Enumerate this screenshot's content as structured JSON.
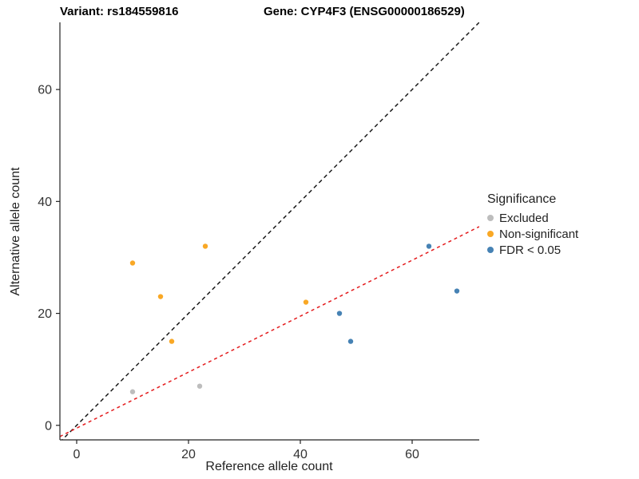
{
  "titles": {
    "variant": "Variant: rs184559816",
    "gene": "Gene: CYP4F3 (ENSG00000186529)"
  },
  "chart_data": {
    "type": "scatter",
    "xlabel": "Reference allele count",
    "ylabel": "Alternative allele count",
    "xlim": [
      -3,
      72
    ],
    "ylim": [
      -2.6,
      72
    ],
    "xticks": [
      0,
      20,
      40,
      60
    ],
    "yticks": [
      0,
      20,
      40,
      60
    ],
    "grid": false,
    "legend": {
      "title": "Significance",
      "position": "right"
    },
    "series": [
      {
        "name": "Excluded",
        "color": "#BDBDBD",
        "points": [
          [
            10,
            6
          ],
          [
            22,
            7
          ]
        ]
      },
      {
        "name": "Non-significant",
        "color": "#F9A825",
        "points": [
          [
            10,
            29
          ],
          [
            15,
            23
          ],
          [
            17,
            15
          ],
          [
            23,
            32
          ],
          [
            41,
            22
          ]
        ]
      },
      {
        "name": "FDR < 0.05",
        "color": "#4682B4",
        "points": [
          [
            47,
            20
          ],
          [
            49,
            15
          ],
          [
            63,
            32
          ],
          [
            68,
            24
          ]
        ]
      }
    ],
    "lines": [
      {
        "name": "identity-line",
        "slope": 1,
        "intercept": 0,
        "color": "#1A1A1A",
        "dash": "5,4"
      },
      {
        "name": "regression-line",
        "slope": 0.5,
        "intercept": -0.5,
        "color": "#E41A1C",
        "dash": "4,4"
      }
    ]
  }
}
